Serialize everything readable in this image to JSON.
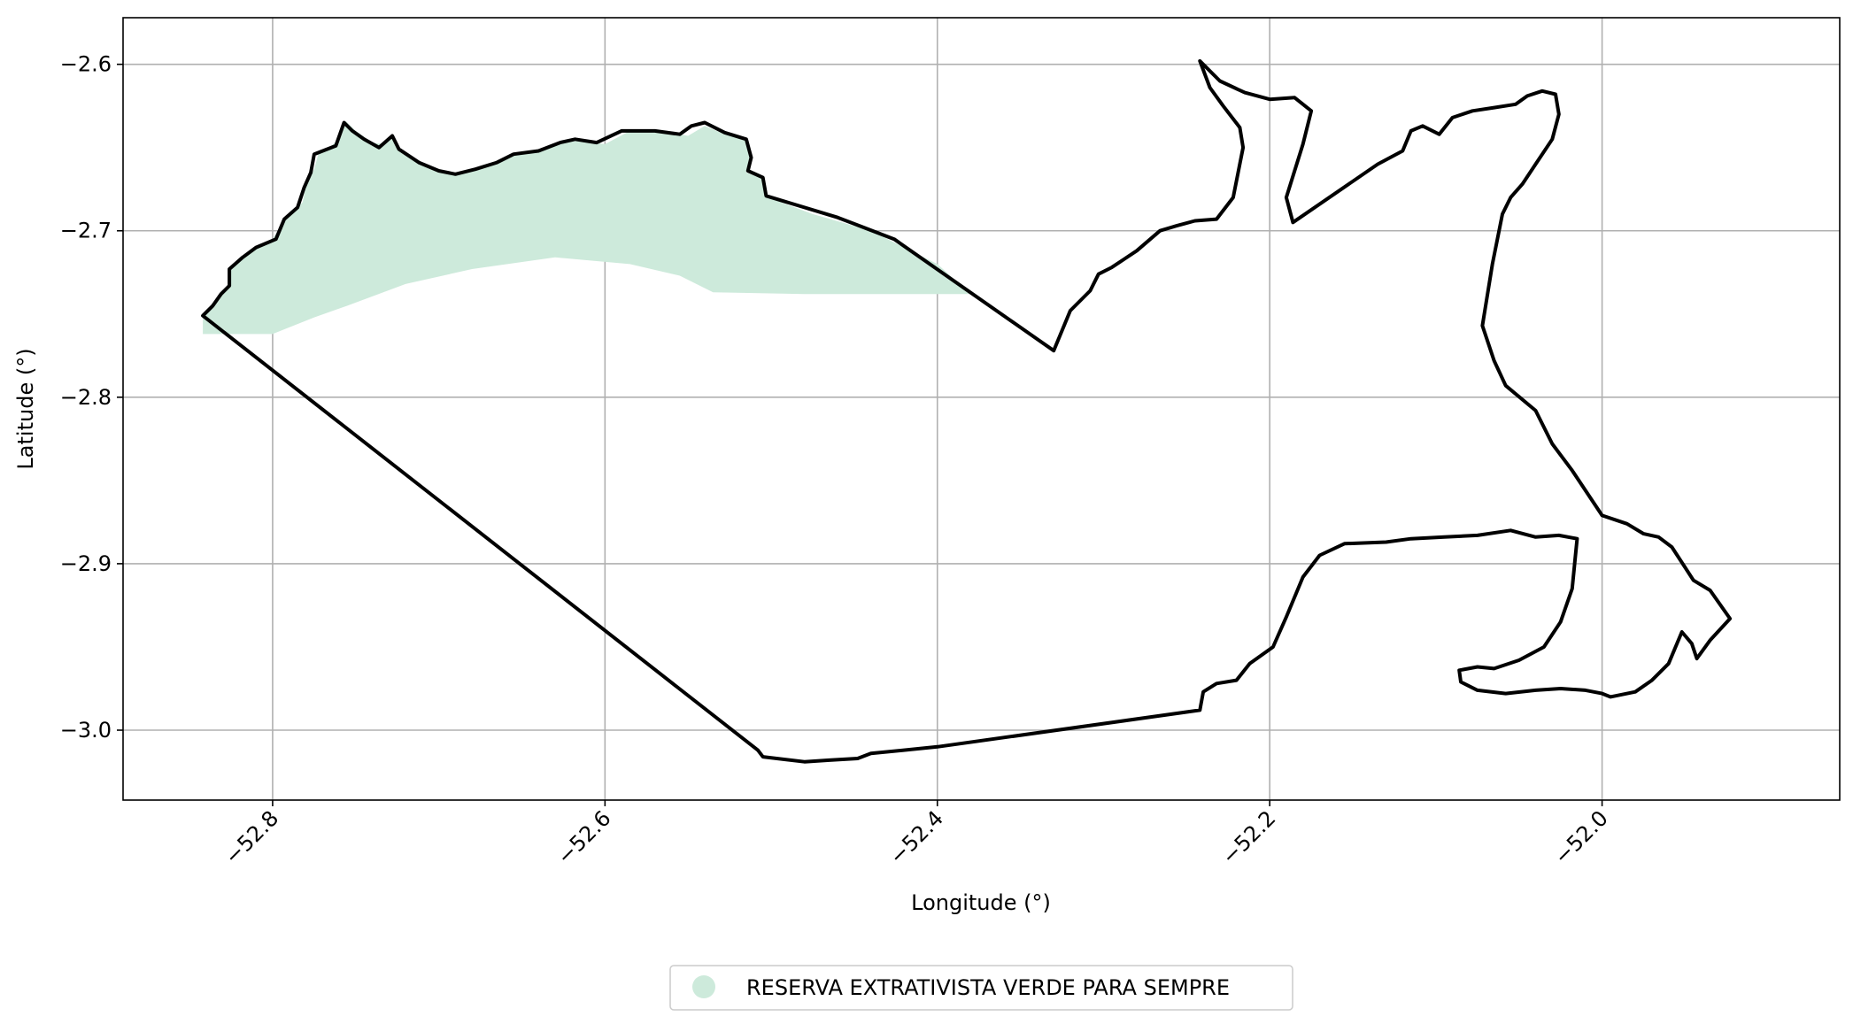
{
  "chart_data": {
    "type": "map",
    "xlabel": "Longitude (°)",
    "ylabel": "Latitude (°)",
    "xlim": [
      -52.89,
      -51.857
    ],
    "ylim": [
      -3.042,
      -2.572
    ],
    "x_ticks": [
      -52.8,
      -52.6,
      -52.4,
      -52.2,
      -52.0
    ],
    "x_tick_labels": [
      "−52.8",
      "−52.6",
      "−52.4",
      "−52.2",
      "−52.0"
    ],
    "y_ticks": [
      -2.6,
      -2.7,
      -2.8,
      -2.9,
      -3.0
    ],
    "y_tick_labels": [
      "−2.6",
      "−2.7",
      "−2.8",
      "−2.9",
      "−3.0"
    ],
    "grid": true,
    "legend": {
      "position": "bottom-center",
      "entries": [
        {
          "label": "RESERVA EXTRATIVISTA VERDE PARA SEMPRE",
          "color": "#cdeadb"
        }
      ]
    },
    "colors": {
      "fill": "#cdeadb",
      "outline": "#000000",
      "grid": "#b0b0b0"
    },
    "filled_area": [
      [
        -52.842,
        -2.751
      ],
      [
        -52.832,
        -2.738
      ],
      [
        -52.826,
        -2.733
      ],
      [
        -52.825,
        -2.722
      ],
      [
        -52.81,
        -2.71
      ],
      [
        -52.8,
        -2.705
      ],
      [
        -52.793,
        -2.693
      ],
      [
        -52.788,
        -2.688
      ],
      [
        -52.782,
        -2.683
      ],
      [
        -52.78,
        -2.673
      ],
      [
        -52.775,
        -2.663
      ],
      [
        -52.772,
        -2.652
      ],
      [
        -52.766,
        -2.65
      ],
      [
        -52.759,
        -2.644
      ],
      [
        -52.756,
        -2.634
      ],
      [
        -52.75,
        -2.64
      ],
      [
        -52.74,
        -2.647
      ],
      [
        -52.733,
        -2.648
      ],
      [
        -52.728,
        -2.643
      ],
      [
        -52.722,
        -2.652
      ],
      [
        -52.715,
        -2.656
      ],
      [
        -52.705,
        -2.663
      ],
      [
        -52.695,
        -2.666
      ],
      [
        -52.685,
        -2.665
      ],
      [
        -52.675,
        -2.661
      ],
      [
        -52.665,
        -2.658
      ],
      [
        -52.655,
        -2.654
      ],
      [
        -52.64,
        -2.652
      ],
      [
        -52.628,
        -2.647
      ],
      [
        -52.615,
        -2.646
      ],
      [
        -52.6,
        -2.648
      ],
      [
        -52.585,
        -2.64
      ],
      [
        -52.565,
        -2.64
      ],
      [
        -52.55,
        -2.643
      ],
      [
        -52.54,
        -2.637
      ],
      [
        -52.528,
        -2.642
      ],
      [
        -52.515,
        -2.644
      ],
      [
        -52.512,
        -2.655
      ],
      [
        -52.515,
        -2.665
      ],
      [
        -52.505,
        -2.669
      ],
      [
        -52.502,
        -2.68
      ],
      [
        -52.475,
        -2.69
      ],
      [
        -52.44,
        -2.7
      ],
      [
        -52.4,
        -2.72
      ],
      [
        -52.38,
        -2.738
      ],
      [
        -52.48,
        -2.738
      ],
      [
        -52.535,
        -2.737
      ],
      [
        -52.555,
        -2.727
      ],
      [
        -52.585,
        -2.72
      ],
      [
        -52.63,
        -2.716
      ],
      [
        -52.68,
        -2.723
      ],
      [
        -52.72,
        -2.732
      ],
      [
        -52.755,
        -2.745
      ],
      [
        -52.775,
        -2.752
      ],
      [
        -52.8,
        -2.762
      ],
      [
        -52.842,
        -2.762
      ]
    ],
    "outline": [
      [
        -52.842,
        -2.751
      ],
      [
        -52.836,
        -2.745
      ],
      [
        -52.831,
        -2.738
      ],
      [
        -52.826,
        -2.733
      ],
      [
        -52.826,
        -2.723
      ],
      [
        -52.818,
        -2.716
      ],
      [
        -52.81,
        -2.71
      ],
      [
        -52.798,
        -2.705
      ],
      [
        -52.793,
        -2.693
      ],
      [
        -52.785,
        -2.686
      ],
      [
        -52.781,
        -2.674
      ],
      [
        -52.777,
        -2.665
      ],
      [
        -52.775,
        -2.654
      ],
      [
        -52.762,
        -2.649
      ],
      [
        -52.757,
        -2.635
      ],
      [
        -52.752,
        -2.64
      ],
      [
        -52.745,
        -2.645
      ],
      [
        -52.736,
        -2.65
      ],
      [
        -52.728,
        -2.643
      ],
      [
        -52.724,
        -2.651
      ],
      [
        -52.712,
        -2.659
      ],
      [
        -52.7,
        -2.664
      ],
      [
        -52.69,
        -2.666
      ],
      [
        -52.678,
        -2.663
      ],
      [
        -52.665,
        -2.659
      ],
      [
        -52.655,
        -2.654
      ],
      [
        -52.64,
        -2.652
      ],
      [
        -52.627,
        -2.647
      ],
      [
        -52.618,
        -2.645
      ],
      [
        -52.605,
        -2.647
      ],
      [
        -52.59,
        -2.64
      ],
      [
        -52.57,
        -2.64
      ],
      [
        -52.555,
        -2.642
      ],
      [
        -52.548,
        -2.637
      ],
      [
        -52.54,
        -2.635
      ],
      [
        -52.528,
        -2.641
      ],
      [
        -52.515,
        -2.645
      ],
      [
        -52.512,
        -2.656
      ],
      [
        -52.514,
        -2.664
      ],
      [
        -52.505,
        -2.668
      ],
      [
        -52.503,
        -2.679
      ],
      [
        -52.46,
        -2.692
      ],
      [
        -52.426,
        -2.705
      ],
      [
        -52.33,
        -2.772
      ],
      [
        -52.32,
        -2.748
      ],
      [
        -52.308,
        -2.736
      ],
      [
        -52.303,
        -2.726
      ],
      [
        -52.295,
        -2.722
      ],
      [
        -52.28,
        -2.712
      ],
      [
        -52.266,
        -2.7
      ],
      [
        -52.256,
        -2.697
      ],
      [
        -52.245,
        -2.694
      ],
      [
        -52.232,
        -2.693
      ],
      [
        -52.222,
        -2.68
      ],
      [
        -52.219,
        -2.665
      ],
      [
        -52.216,
        -2.65
      ],
      [
        -52.218,
        -2.638
      ],
      [
        -52.228,
        -2.625
      ],
      [
        -52.236,
        -2.614
      ],
      [
        -52.242,
        -2.598
      ],
      [
        -52.23,
        -2.61
      ],
      [
        -52.215,
        -2.617
      ],
      [
        -52.2,
        -2.621
      ],
      [
        -52.185,
        -2.62
      ],
      [
        -52.175,
        -2.628
      ],
      [
        -52.18,
        -2.648
      ],
      [
        -52.19,
        -2.68
      ],
      [
        -52.186,
        -2.695
      ],
      [
        -52.135,
        -2.66
      ],
      [
        -52.12,
        -2.652
      ],
      [
        -52.115,
        -2.64
      ],
      [
        -52.108,
        -2.637
      ],
      [
        -52.098,
        -2.642
      ],
      [
        -52.09,
        -2.632
      ],
      [
        -52.078,
        -2.628
      ],
      [
        -52.065,
        -2.626
      ],
      [
        -52.052,
        -2.624
      ],
      [
        -52.045,
        -2.619
      ],
      [
        -52.036,
        -2.616
      ],
      [
        -52.028,
        -2.618
      ],
      [
        -52.026,
        -2.63
      ],
      [
        -52.03,
        -2.645
      ],
      [
        -52.04,
        -2.66
      ],
      [
        -52.048,
        -2.672
      ],
      [
        -52.055,
        -2.68
      ],
      [
        -52.06,
        -2.69
      ],
      [
        -52.066,
        -2.72
      ],
      [
        -52.072,
        -2.757
      ],
      [
        -52.065,
        -2.778
      ],
      [
        -52.058,
        -2.793
      ],
      [
        -52.04,
        -2.808
      ],
      [
        -52.03,
        -2.828
      ],
      [
        -52.018,
        -2.844
      ],
      [
        -52.0,
        -2.871
      ],
      [
        -51.985,
        -2.876
      ],
      [
        -51.975,
        -2.882
      ],
      [
        -51.966,
        -2.884
      ],
      [
        -51.958,
        -2.89
      ],
      [
        -51.945,
        -2.91
      ],
      [
        -51.935,
        -2.916
      ],
      [
        -51.923,
        -2.933
      ],
      [
        -51.935,
        -2.946
      ],
      [
        -51.943,
        -2.957
      ],
      [
        -51.946,
        -2.948
      ],
      [
        -51.952,
        -2.941
      ],
      [
        -51.96,
        -2.96
      ],
      [
        -51.97,
        -2.97
      ],
      [
        -51.98,
        -2.977
      ],
      [
        -51.995,
        -2.98
      ],
      [
        -52.0,
        -2.978
      ],
      [
        -52.01,
        -2.976
      ],
      [
        -52.025,
        -2.975
      ],
      [
        -52.04,
        -2.976
      ],
      [
        -52.058,
        -2.978
      ],
      [
        -52.075,
        -2.976
      ],
      [
        -52.085,
        -2.971
      ],
      [
        -52.086,
        -2.964
      ],
      [
        -52.075,
        -2.962
      ],
      [
        -52.065,
        -2.963
      ],
      [
        -52.05,
        -2.958
      ],
      [
        -52.035,
        -2.95
      ],
      [
        -52.025,
        -2.935
      ],
      [
        -52.018,
        -2.915
      ],
      [
        -52.015,
        -2.885
      ],
      [
        -52.026,
        -2.883
      ],
      [
        -52.04,
        -2.884
      ],
      [
        -52.055,
        -2.88
      ],
      [
        -52.075,
        -2.883
      ],
      [
        -52.095,
        -2.884
      ],
      [
        -52.115,
        -2.885
      ],
      [
        -52.13,
        -2.887
      ],
      [
        -52.155,
        -2.888
      ],
      [
        -52.17,
        -2.895
      ],
      [
        -52.18,
        -2.908
      ],
      [
        -52.19,
        -2.932
      ],
      [
        -52.198,
        -2.95
      ],
      [
        -52.212,
        -2.96
      ],
      [
        -52.22,
        -2.97
      ],
      [
        -52.232,
        -2.972
      ],
      [
        -52.24,
        -2.977
      ],
      [
        -52.242,
        -2.988
      ],
      [
        -52.4,
        -3.01
      ],
      [
        -52.44,
        -3.014
      ],
      [
        -52.448,
        -3.017
      ],
      [
        -52.465,
        -3.018
      ],
      [
        -52.48,
        -3.019
      ],
      [
        -52.505,
        -3.016
      ],
      [
        -52.508,
        -3.012
      ],
      [
        -52.842,
        -2.751
      ]
    ]
  },
  "legend_label": "RESERVA EXTRATIVISTA VERDE PARA SEMPRE"
}
